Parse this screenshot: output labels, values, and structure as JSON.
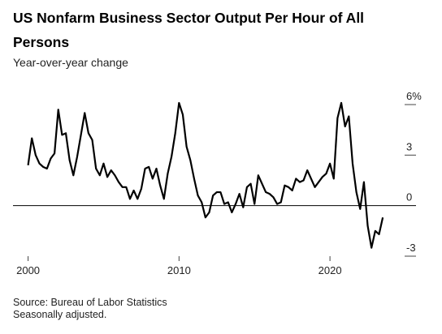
{
  "chart_data": {
    "type": "line",
    "title_lines": [
      "US Nonfarm Business Sector Output Per Hour of All",
      "Persons"
    ],
    "subtitle": "Year-over-year change",
    "source": "Source: Bureau of Labor Statistics",
    "note": "Seasonally adjusted.",
    "x": [
      2000,
      2000.25,
      2000.5,
      2000.75,
      2001,
      2001.25,
      2001.5,
      2001.75,
      2002,
      2002.25,
      2002.5,
      2002.75,
      2003,
      2003.25,
      2003.5,
      2003.75,
      2004,
      2004.25,
      2004.5,
      2004.75,
      2005,
      2005.25,
      2005.5,
      2005.75,
      2006,
      2006.25,
      2006.5,
      2006.75,
      2007,
      2007.25,
      2007.5,
      2007.75,
      2008,
      2008.25,
      2008.5,
      2008.75,
      2009,
      2009.25,
      2009.5,
      2009.75,
      2010,
      2010.25,
      2010.5,
      2010.75,
      2011,
      2011.25,
      2011.5,
      2011.75,
      2012,
      2012.25,
      2012.5,
      2012.75,
      2013,
      2013.25,
      2013.5,
      2013.75,
      2014,
      2014.25,
      2014.5,
      2014.75,
      2015,
      2015.25,
      2015.5,
      2015.75,
      2016,
      2016.25,
      2016.5,
      2016.75,
      2017,
      2017.25,
      2017.5,
      2017.75,
      2018,
      2018.25,
      2018.5,
      2018.75,
      2019,
      2019.25,
      2019.5,
      2019.75,
      2020,
      2020.25,
      2020.5,
      2020.75,
      2021,
      2021.25,
      2021.5,
      2021.75,
      2022,
      2022.25,
      2022.5,
      2022.75,
      2023,
      2023.25,
      2023.5
    ],
    "series": [
      {
        "name": "Output per hour",
        "color": "#000000",
        "values": [
          2.4,
          4.0,
          3.0,
          2.5,
          2.3,
          2.2,
          2.8,
          3.1,
          5.7,
          4.2,
          4.3,
          2.7,
          1.8,
          2.9,
          4.2,
          5.5,
          4.3,
          3.9,
          2.2,
          1.8,
          2.5,
          1.7,
          2.1,
          1.8,
          1.4,
          1.1,
          1.1,
          0.4,
          0.9,
          0.4,
          1.0,
          2.2,
          2.3,
          1.6,
          2.2,
          1.2,
          0.4,
          1.9,
          2.9,
          4.3,
          6.1,
          5.4,
          3.5,
          2.7,
          1.6,
          0.6,
          0.2,
          -0.7,
          -0.4,
          0.6,
          0.8,
          0.8,
          0.1,
          0.2,
          -0.4,
          0.1,
          0.7,
          -0.1,
          1.1,
          1.3,
          0.1,
          1.8,
          1.3,
          0.8,
          0.7,
          0.5,
          0.1,
          0.2,
          1.2,
          1.1,
          0.9,
          1.6,
          1.4,
          1.5,
          2.1,
          1.6,
          1.1,
          1.4,
          1.7,
          1.9,
          2.5,
          1.6,
          5.2,
          6.1,
          4.7,
          5.3,
          2.5,
          0.8,
          -0.2,
          1.4,
          -1.2,
          -2.5,
          -1.5,
          -1.7,
          -0.7
        ]
      }
    ],
    "xlim": [
      1999,
      2025.7
    ],
    "xticks": [
      2000,
      2010,
      2020
    ],
    "ylim": [
      -3,
      6
    ],
    "yticks": [
      {
        "value": 6,
        "label": "6%"
      },
      3,
      0,
      -3
    ]
  }
}
